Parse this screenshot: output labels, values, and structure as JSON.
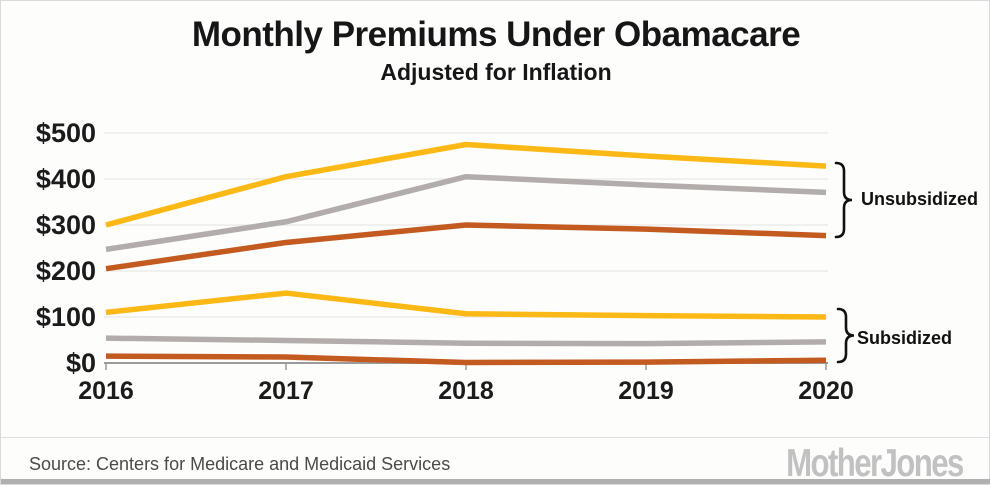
{
  "header": {
    "title": "Monthly Premiums Under Obamacare",
    "subtitle": "Adjusted for Inflation"
  },
  "chart_data": {
    "type": "line",
    "x": [
      2016,
      2017,
      2018,
      2019,
      2020
    ],
    "x_labels": [
      "2016",
      "2017",
      "2018",
      "2019",
      "2020"
    ],
    "y_ticks": [
      "$500",
      "$400",
      "$300",
      "$200",
      "$100",
      "$0"
    ],
    "y_tick_values": [
      500,
      400,
      300,
      200,
      100,
      0
    ],
    "ylim": [
      0,
      500
    ],
    "grid": "horizontal",
    "legend_position": "right-braces",
    "series": [
      {
        "name": "gold-unsubsidized",
        "group": "Unsubsidized",
        "color": "#FCB814",
        "values": [
          300,
          405,
          475,
          450,
          428
        ]
      },
      {
        "name": "silver-unsubsidized",
        "group": "Unsubsidized",
        "color": "#B2ADAB",
        "values": [
          247,
          307,
          405,
          387,
          371
        ]
      },
      {
        "name": "bronze-unsubsidized",
        "group": "Unsubsidized",
        "color": "#C35A1F",
        "values": [
          205,
          262,
          300,
          291,
          277
        ]
      },
      {
        "name": "gold-subsidized",
        "group": "Subsidized",
        "color": "#FCB814",
        "values": [
          110,
          152,
          107,
          103,
          100
        ]
      },
      {
        "name": "silver-subsidized",
        "group": "Subsidized",
        "color": "#B2ADAB",
        "values": [
          54,
          49,
          43,
          42,
          46
        ]
      },
      {
        "name": "bronze-subsidized",
        "group": "Subsidized",
        "color": "#C35A1F",
        "values": [
          15,
          13,
          1,
          2,
          6
        ]
      }
    ],
    "annotations": [
      {
        "label": "Unsubsidized"
      },
      {
        "label": "Subsidized"
      }
    ],
    "colors": {
      "gold": "#FCB814",
      "silver": "#B2ADAB",
      "bronze": "#C35A1F",
      "axis": "#9b9b9b",
      "gridline": "#e9e9e5"
    }
  },
  "footer": {
    "source": "Source: Centers for Medicare and Medicaid Services",
    "logo": "MotherJones"
  }
}
